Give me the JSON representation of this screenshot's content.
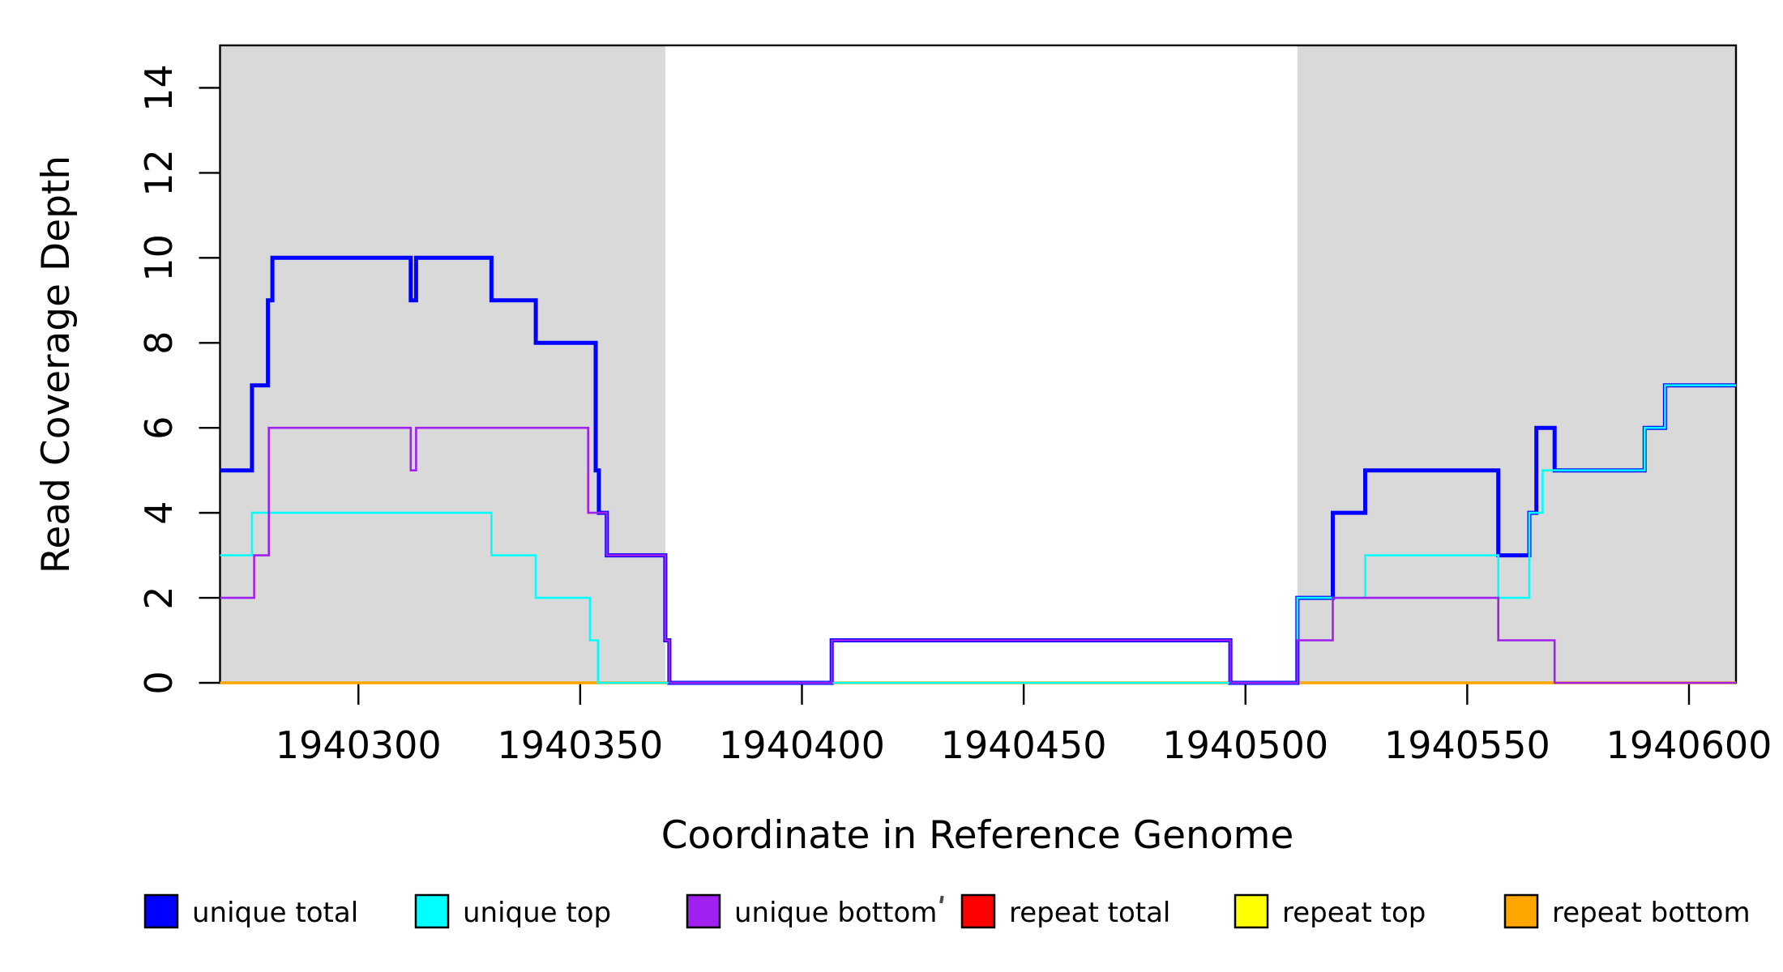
{
  "figure": {
    "kind": "read coverage step plot",
    "xlabel": "Coordinate in Reference Genome",
    "ylabel": "Read Coverage Depth"
  },
  "chart_data": {
    "type": "line",
    "subtype": "step",
    "title": "",
    "xlabel": "Coordinate in Reference Genome",
    "ylabel": "Read Coverage Depth",
    "xlim": [
      1940268.8,
      1940610.6
    ],
    "ylim": [
      0,
      15
    ],
    "x_ticks": [
      1940300,
      1940350,
      1940400,
      1940450,
      1940500,
      1940550,
      1940600
    ],
    "y_ticks": [
      0,
      2,
      4,
      6,
      8,
      10,
      12,
      14
    ],
    "grid": false,
    "legend_position": "bottom",
    "shading_color": "#D9D9D9",
    "shaded_regions": [
      {
        "label": "left-shaded-region",
        "x_start": 1940268.8,
        "x_end": 1940369.2
      },
      {
        "label": "right-shaded-region",
        "x_start": 1940511.7,
        "x_end": 1940610.6
      }
    ],
    "series": [
      {
        "name": "unique total",
        "color": "#0000FF",
        "line_width": 5,
        "steps": [
          [
            1940268.8,
            5
          ],
          [
            1940276,
            7
          ],
          [
            1940279.6,
            9
          ],
          [
            1940280.6,
            10
          ],
          [
            1940311.8,
            9
          ],
          [
            1940313,
            10
          ],
          [
            1940330,
            9
          ],
          [
            1940340,
            8
          ],
          [
            1940353.5,
            5
          ],
          [
            1940354.2,
            4
          ],
          [
            1940356,
            3
          ],
          [
            1940369.2,
            1
          ],
          [
            1940370.1,
            0
          ],
          [
            1940406.7,
            1
          ],
          [
            1940496.6,
            0
          ],
          [
            1940511.7,
            2
          ],
          [
            1940519.7,
            4
          ],
          [
            1940527,
            5
          ],
          [
            1940557,
            3
          ],
          [
            1940564,
            4
          ],
          [
            1940565.6,
            6
          ],
          [
            1940569.7,
            5
          ],
          [
            1940590,
            6
          ],
          [
            1940594.6,
            7
          ],
          [
            1940610.6,
            7
          ]
        ]
      },
      {
        "name": "unique top",
        "color": "#00FFFF",
        "line_width": 2.6,
        "steps": [
          [
            1940268.8,
            3
          ],
          [
            1940276,
            4
          ],
          [
            1940330,
            3
          ],
          [
            1940340,
            2
          ],
          [
            1940352.2,
            1
          ],
          [
            1940354,
            0
          ],
          [
            1940511.7,
            2
          ],
          [
            1940527,
            3
          ],
          [
            1940557,
            2
          ],
          [
            1940564,
            4
          ],
          [
            1940567,
            5
          ],
          [
            1940590,
            6
          ],
          [
            1940594.6,
            7
          ],
          [
            1940610.6,
            7
          ]
        ]
      },
      {
        "name": "unique bottom",
        "color": "#A020F0",
        "line_width": 2.6,
        "steps": [
          [
            1940268.8,
            2
          ],
          [
            1940276.5,
            3
          ],
          [
            1940279.8,
            6
          ],
          [
            1940311.8,
            5
          ],
          [
            1940313,
            6
          ],
          [
            1940351.8,
            4
          ],
          [
            1940356,
            3
          ],
          [
            1940369.2,
            1
          ],
          [
            1940370.1,
            0
          ],
          [
            1940406.7,
            1
          ],
          [
            1940496.6,
            0
          ],
          [
            1940511.7,
            1
          ],
          [
            1940519.7,
            2
          ],
          [
            1940557,
            1
          ],
          [
            1940569.7,
            0
          ],
          [
            1940610.6,
            0
          ]
        ]
      },
      {
        "name": "repeat total",
        "color": "#FF0000",
        "line_width": 2.6,
        "steps": [
          [
            1940268.8,
            0
          ],
          [
            1940610.6,
            0
          ]
        ]
      },
      {
        "name": "repeat top",
        "color": "#FFFF00",
        "line_width": 2.6,
        "steps": [
          [
            1940268.8,
            0
          ],
          [
            1940610.6,
            0
          ]
        ]
      },
      {
        "name": "repeat bottom",
        "color": "#FFA500",
        "line_width": 3.4,
        "steps": [
          [
            1940268.8,
            0
          ],
          [
            1940610.6,
            0
          ]
        ]
      }
    ],
    "draw_order": [
      3,
      4,
      5,
      0,
      1,
      2
    ],
    "legend": {
      "entries": [
        {
          "label": "unique total",
          "color": "#0000FF"
        },
        {
          "label": "unique top",
          "color": "#00FFFF"
        },
        {
          "label": "unique bottom",
          "color": "#A020F0"
        },
        {
          "label": "repeat total",
          "color": "#FF0000"
        },
        {
          "label": "repeat top",
          "color": "#FFFF00"
        },
        {
          "label": "repeat bottom",
          "color": "#FFA500"
        }
      ]
    }
  }
}
